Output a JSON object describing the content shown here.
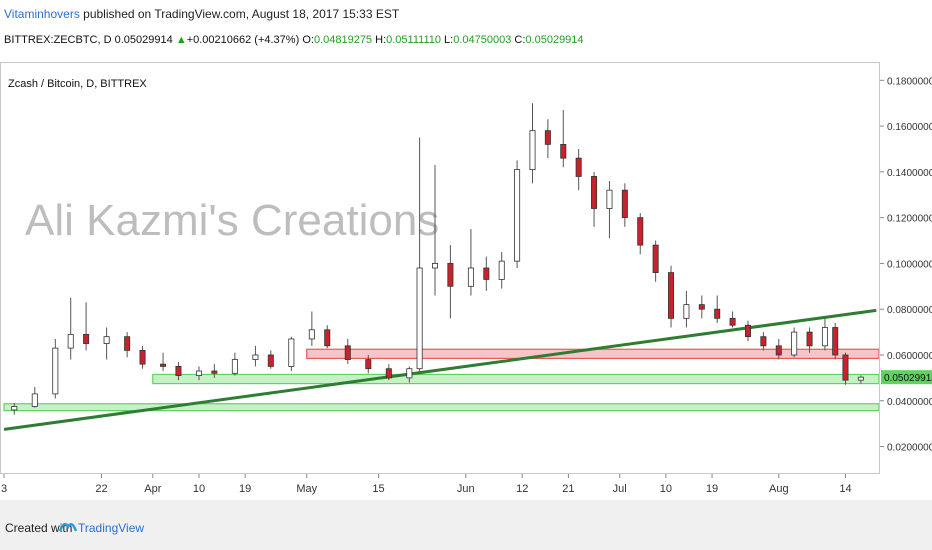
{
  "header": {
    "author": "Vitaminhovers",
    "published": " published on TradingView.com, August 18, 2017 15:33 EST",
    "symbol": "BITTREX:ZECBTC, D",
    "last": "0.05029914",
    "arrow": "▲",
    "change": "+0.00210662 (+4.37%)",
    "o_label": "O:",
    "o": "0.04819275",
    "h_label": "H:",
    "h": "0.05111110",
    "l_label": "L:",
    "l": "0.04750003",
    "c_label": "C:",
    "c": "0.05029914"
  },
  "chart_title": "Zcash / Bitcoin, D, BITTREX",
  "watermark": "Ali Kazmi's Creations",
  "footer": {
    "created_with": "Created with",
    "brand": "TradingView"
  },
  "colors": {
    "up": "#ffffff",
    "down": "#c8232c",
    "support": "#5fd35f",
    "resistance": "#e85a5a",
    "trend": "#2e7d32",
    "price_label": "#5fd35f"
  },
  "chart_data": {
    "type": "candlestick",
    "title": "Zcash / Bitcoin, D, BITTREX",
    "ylim": [
      0.008,
      0.188
    ],
    "x_range": [
      "2017-03-03",
      "2017-08-18"
    ],
    "y_ticks": [
      "0.02000000",
      "0.04000000",
      "0.06000000",
      "0.08000000",
      "0.10000000",
      "0.12000000",
      "0.14000000",
      "0.16000000",
      "0.18000000"
    ],
    "y_tick_values": [
      0.02,
      0.04,
      0.06,
      0.08,
      0.1,
      0.12,
      0.14,
      0.16,
      0.18
    ],
    "last_price_label": "0.05029914",
    "last_price": 0.05029914,
    "x_ticks": [
      {
        "label": "3",
        "date": "2017-03-03"
      },
      {
        "label": "22",
        "date": "2017-03-22"
      },
      {
        "label": "Apr",
        "date": "2017-04-01"
      },
      {
        "label": "10",
        "date": "2017-04-10"
      },
      {
        "label": "19",
        "date": "2017-04-19"
      },
      {
        "label": "May",
        "date": "2017-05-01"
      },
      {
        "label": "15",
        "date": "2017-05-15"
      },
      {
        "label": "Jun",
        "date": "2017-06-01"
      },
      {
        "label": "12",
        "date": "2017-06-12"
      },
      {
        "label": "21",
        "date": "2017-06-21"
      },
      {
        "label": "Jul",
        "date": "2017-07-01"
      },
      {
        "label": "10",
        "date": "2017-07-10"
      },
      {
        "label": "19",
        "date": "2017-07-19"
      },
      {
        "label": "Aug",
        "date": "2017-08-01"
      },
      {
        "label": "14",
        "date": "2017-08-14"
      }
    ],
    "zones": [
      {
        "kind": "support",
        "from": "2017-04-01",
        "y0": 0.0475,
        "y1": 0.0515
      },
      {
        "kind": "support",
        "from": "2017-03-03",
        "y0": 0.0357,
        "y1": 0.0387
      },
      {
        "kind": "resistance",
        "from": "2017-05-01",
        "y0": 0.0585,
        "y1": 0.0625
      }
    ],
    "trendline": {
      "x0": "2017-03-03",
      "y0": 0.0275,
      "x1": "2017-08-20",
      "y1": 0.0795
    },
    "ohlc": [
      [
        "2017-03-05",
        0.036,
        0.039,
        0.034,
        0.0375
      ],
      [
        "2017-03-09",
        0.0375,
        0.046,
        0.037,
        0.043
      ],
      [
        "2017-03-13",
        0.043,
        0.067,
        0.041,
        0.063
      ],
      [
        "2017-03-16",
        0.063,
        0.085,
        0.058,
        0.069
      ],
      [
        "2017-03-19",
        0.069,
        0.083,
        0.062,
        0.065
      ],
      [
        "2017-03-23",
        0.065,
        0.072,
        0.058,
        0.068
      ],
      [
        "2017-03-27",
        0.068,
        0.07,
        0.059,
        0.062
      ],
      [
        "2017-03-30",
        0.062,
        0.064,
        0.054,
        0.056
      ],
      [
        "2017-04-03",
        0.056,
        0.061,
        0.053,
        0.055
      ],
      [
        "2017-04-06",
        0.055,
        0.057,
        0.049,
        0.051
      ],
      [
        "2017-04-10",
        0.051,
        0.055,
        0.049,
        0.053
      ],
      [
        "2017-04-13",
        0.053,
        0.056,
        0.05,
        0.052
      ],
      [
        "2017-04-17",
        0.052,
        0.061,
        0.051,
        0.058
      ],
      [
        "2017-04-21",
        0.058,
        0.064,
        0.055,
        0.06
      ],
      [
        "2017-04-24",
        0.06,
        0.062,
        0.054,
        0.055
      ],
      [
        "2017-04-28",
        0.055,
        0.068,
        0.053,
        0.067
      ],
      [
        "2017-05-02",
        0.067,
        0.079,
        0.064,
        0.071
      ],
      [
        "2017-05-05",
        0.071,
        0.073,
        0.063,
        0.064
      ],
      [
        "2017-05-09",
        0.064,
        0.067,
        0.056,
        0.058
      ],
      [
        "2017-05-13",
        0.058,
        0.06,
        0.052,
        0.054
      ],
      [
        "2017-05-17",
        0.054,
        0.056,
        0.049,
        0.05
      ],
      [
        "2017-05-21",
        0.05,
        0.055,
        0.048,
        0.054
      ],
      [
        "2017-05-23",
        0.054,
        0.155,
        0.052,
        0.098
      ],
      [
        "2017-05-26",
        0.098,
        0.143,
        0.086,
        0.1
      ],
      [
        "2017-05-29",
        0.1,
        0.108,
        0.076,
        0.09
      ],
      [
        "2017-06-02",
        0.09,
        0.115,
        0.086,
        0.098
      ],
      [
        "2017-06-05",
        0.098,
        0.103,
        0.088,
        0.093
      ],
      [
        "2017-06-08",
        0.093,
        0.105,
        0.089,
        0.101
      ],
      [
        "2017-06-11",
        0.101,
        0.145,
        0.098,
        0.141
      ],
      [
        "2017-06-14",
        0.141,
        0.17,
        0.135,
        0.158
      ],
      [
        "2017-06-17",
        0.158,
        0.163,
        0.146,
        0.152
      ],
      [
        "2017-06-20",
        0.152,
        0.167,
        0.142,
        0.146
      ],
      [
        "2017-06-23",
        0.146,
        0.15,
        0.132,
        0.138
      ],
      [
        "2017-06-26",
        0.138,
        0.14,
        0.116,
        0.124
      ],
      [
        "2017-06-29",
        0.124,
        0.136,
        0.111,
        0.132
      ],
      [
        "2017-07-02",
        0.132,
        0.135,
        0.116,
        0.12
      ],
      [
        "2017-07-05",
        0.12,
        0.122,
        0.104,
        0.108
      ],
      [
        "2017-07-08",
        0.108,
        0.11,
        0.092,
        0.096
      ],
      [
        "2017-07-11",
        0.096,
        0.099,
        0.072,
        0.076
      ],
      [
        "2017-07-14",
        0.076,
        0.088,
        0.072,
        0.082
      ],
      [
        "2017-07-17",
        0.082,
        0.086,
        0.076,
        0.08
      ],
      [
        "2017-07-20",
        0.08,
        0.086,
        0.074,
        0.076
      ],
      [
        "2017-07-23",
        0.076,
        0.079,
        0.072,
        0.073
      ],
      [
        "2017-07-26",
        0.073,
        0.075,
        0.066,
        0.068
      ],
      [
        "2017-07-29",
        0.068,
        0.07,
        0.062,
        0.064
      ],
      [
        "2017-08-01",
        0.064,
        0.067,
        0.058,
        0.06
      ],
      [
        "2017-08-04",
        0.06,
        0.072,
        0.059,
        0.07
      ],
      [
        "2017-08-07",
        0.07,
        0.072,
        0.061,
        0.064
      ],
      [
        "2017-08-10",
        0.064,
        0.076,
        0.062,
        0.072
      ],
      [
        "2017-08-12",
        0.072,
        0.074,
        0.058,
        0.06
      ],
      [
        "2017-08-14",
        0.06,
        0.061,
        0.047,
        0.049
      ],
      [
        "2017-08-17",
        0.049,
        0.0511,
        0.0475,
        0.0503
      ]
    ]
  }
}
